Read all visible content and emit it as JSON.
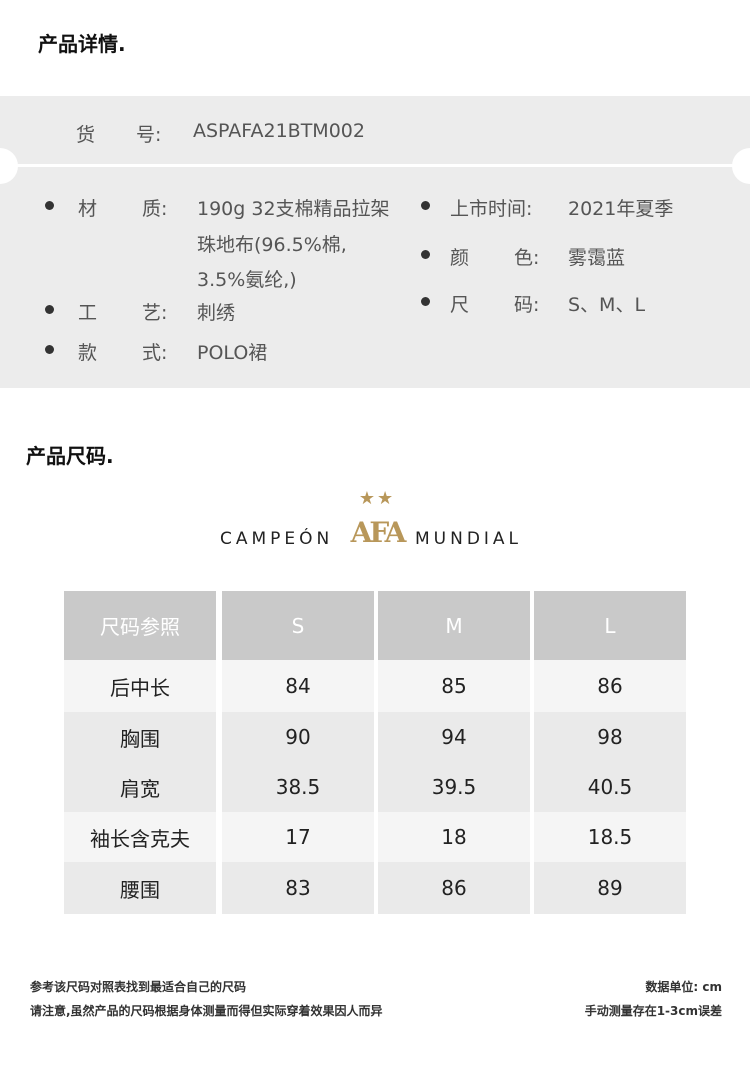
{
  "details": {
    "title": "产品详情.",
    "sku_label_1": "货",
    "sku_label_2": "号:",
    "sku_value": "ASPAFA21BTM002",
    "left": [
      {
        "l1": "材",
        "l2": "质:",
        "lines": [
          "190g 32支棉精品拉架",
          "珠地布(96.5%棉,",
          "3.5%氨纶,)"
        ]
      },
      {
        "l1": "工",
        "l2": "艺:",
        "lines": [
          "刺绣"
        ]
      },
      {
        "l1": "款",
        "l2": "式:",
        "lines": [
          "POLO裙"
        ]
      }
    ],
    "right": [
      {
        "label": "上市时间:",
        "value": "2021年夏季"
      },
      {
        "l1": "颜",
        "l2": "色:",
        "value": "雾霭蓝"
      },
      {
        "l1": "尺",
        "l2": "码:",
        "value": "S、M、L"
      }
    ]
  },
  "size": {
    "title": "产品尺码.",
    "logo": {
      "left": "CAMPEÓN",
      "mark": "AFA",
      "right": "MUNDIAL",
      "stars": "★★",
      "color": "#b8975a"
    },
    "table": {
      "headers": [
        "尺码参照",
        "S",
        "M",
        "L"
      ],
      "rows": [
        [
          "后中长",
          "84",
          "85",
          "86"
        ],
        [
          "胸围",
          "90",
          "94",
          "98"
        ],
        [
          "肩宽",
          "38.5",
          "39.5",
          "40.5"
        ],
        [
          "袖长含克夫",
          "17",
          "18",
          "18.5"
        ],
        [
          "腰围",
          "83",
          "86",
          "89"
        ]
      ]
    },
    "notes": {
      "left1": "参考该尺码对照表找到最适合自己的尺码",
      "left2": "请注意,虽然产品的尺码根据身体测量而得但实际穿着效果因人而异",
      "right1": "数据单位: cm",
      "right2": "手动测量存在1-3cm误差"
    }
  }
}
